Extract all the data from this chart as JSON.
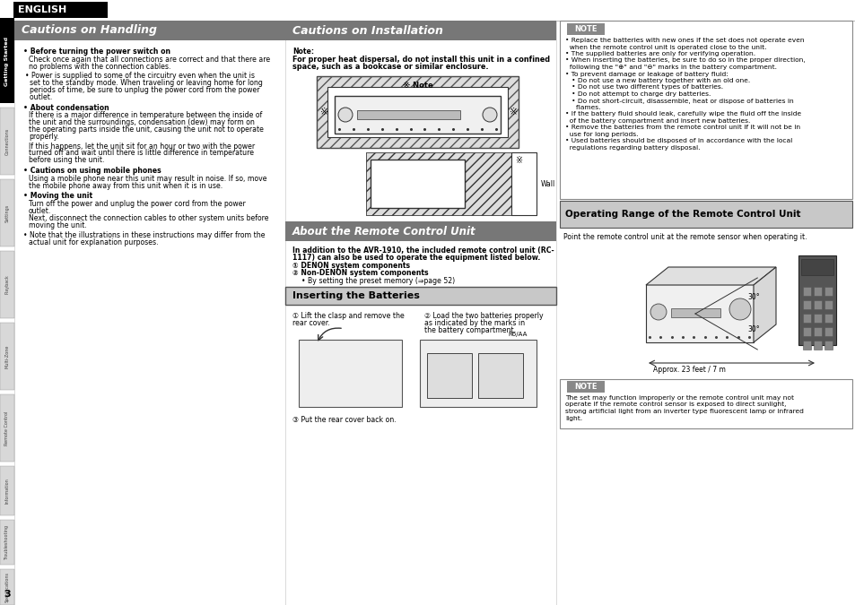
{
  "page_bg": "#ffffff",
  "english_text": "ENGLISH",
  "sidebar_labels": [
    "Getting Started",
    "Connections",
    "Settings",
    "Playback",
    "Multi-Zone",
    "Remote Control",
    "Information",
    "Troubleshooting",
    "Specifications"
  ],
  "page_number": "3",
  "col1_title": "Cautions on Handling",
  "col2_title": "Cautions on Installation",
  "col3_title_operating": "Operating Range of the Remote Control Unit",
  "about_rc_title": "About the Remote Control Unit",
  "inserting_title": "Inserting the Batteries",
  "header_gray": "#7a7a7a",
  "header_light_gray": "#c8c8c8",
  "note_pill_bg": "#888888",
  "border_color": "#444444",
  "light_gray": "#e0e0e0",
  "mid_gray": "#aaaaaa"
}
